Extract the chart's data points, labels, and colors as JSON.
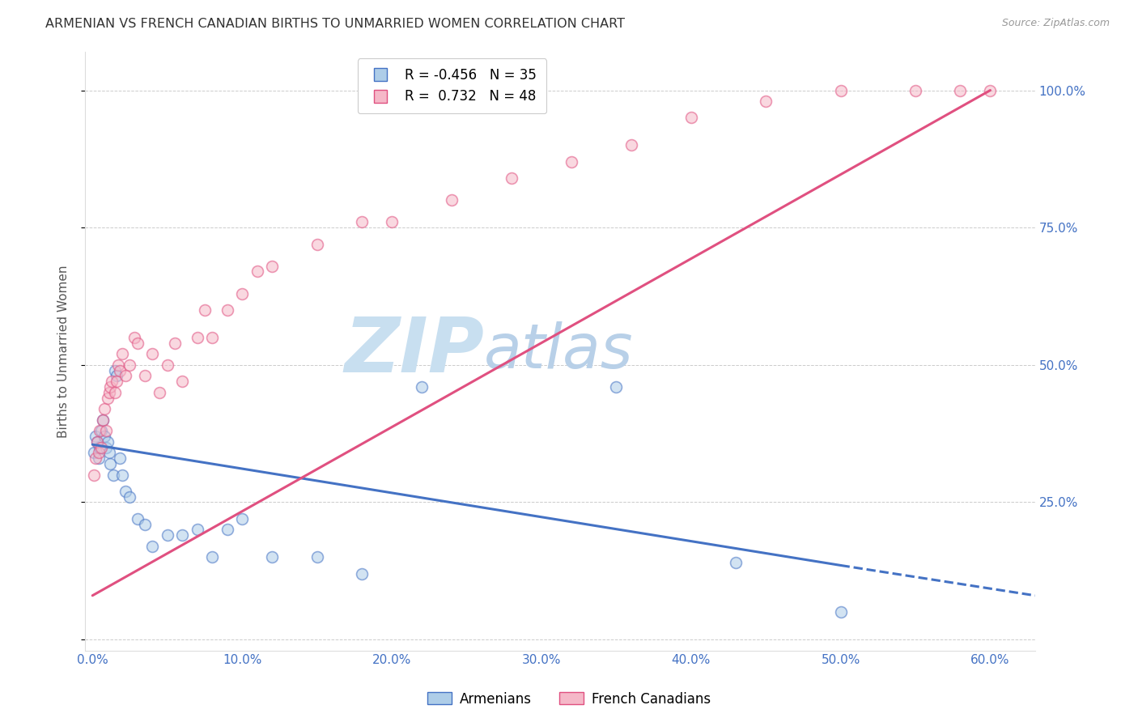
{
  "title": "ARMENIAN VS FRENCH CANADIAN BIRTHS TO UNMARRIED WOMEN CORRELATION CHART",
  "source_text": "Source: ZipAtlas.com",
  "ylabel": "Births to Unmarried Women",
  "xlabel_ticks": [
    0.0,
    10.0,
    20.0,
    30.0,
    40.0,
    50.0,
    60.0
  ],
  "ylabel_ticks_right": [
    25.0,
    50.0,
    75.0,
    100.0
  ],
  "ylabel_grid_ticks": [
    0.0,
    25.0,
    50.0,
    75.0,
    100.0
  ],
  "x_min": -0.5,
  "x_max": 63.0,
  "y_min": -2.0,
  "y_max": 107.0,
  "armenian_color": "#aecde8",
  "armenian_edge_color": "#4472c4",
  "armenian_line_color": "#4472c4",
  "french_color": "#f5b8c8",
  "french_edge_color": "#e05080",
  "french_line_color": "#e05080",
  "legend_R_armenian": "-0.456",
  "legend_N_armenian": "35",
  "legend_R_french": "0.732",
  "legend_N_french": "48",
  "legend_label_armenian": "Armenians",
  "legend_label_french": "French Canadians",
  "watermark_zip": "ZIP",
  "watermark_atlas": "atlas",
  "watermark_color_zip": "#c8dff0",
  "watermark_color_atlas": "#b8d0e8",
  "background_color": "#ffffff",
  "grid_color": "#cccccc",
  "axis_label_color": "#4472c4",
  "title_color": "#333333",
  "armenian_x": [
    0.1,
    0.2,
    0.3,
    0.4,
    0.5,
    0.6,
    0.7,
    0.8,
    0.9,
    1.0,
    1.1,
    1.2,
    1.4,
    1.5,
    1.6,
    1.8,
    2.0,
    2.2,
    2.5,
    3.0,
    3.5,
    4.0,
    5.0,
    6.0,
    7.0,
    8.0,
    9.0,
    10.0,
    12.0,
    15.0,
    18.0,
    22.0,
    35.0,
    43.0,
    50.0
  ],
  "armenian_y": [
    34.0,
    37.0,
    36.0,
    33.0,
    35.0,
    38.0,
    40.0,
    37.0,
    35.0,
    36.0,
    34.0,
    32.0,
    30.0,
    49.0,
    48.0,
    33.0,
    30.0,
    27.0,
    26.0,
    22.0,
    21.0,
    17.0,
    19.0,
    19.0,
    20.0,
    15.0,
    20.0,
    22.0,
    15.0,
    15.0,
    12.0,
    46.0,
    46.0,
    14.0,
    5.0
  ],
  "french_x": [
    0.1,
    0.2,
    0.3,
    0.4,
    0.5,
    0.6,
    0.7,
    0.8,
    0.9,
    1.0,
    1.1,
    1.2,
    1.3,
    1.5,
    1.6,
    1.7,
    1.8,
    2.0,
    2.2,
    2.5,
    2.8,
    3.0,
    3.5,
    4.0,
    4.5,
    5.0,
    5.5,
    6.0,
    7.0,
    7.5,
    8.0,
    9.0,
    10.0,
    11.0,
    12.0,
    15.0,
    18.0,
    20.0,
    24.0,
    28.0,
    32.0,
    36.0,
    40.0,
    45.0,
    50.0,
    55.0,
    58.0,
    60.0
  ],
  "french_y": [
    30.0,
    33.0,
    36.0,
    34.0,
    38.0,
    35.0,
    40.0,
    42.0,
    38.0,
    44.0,
    45.0,
    46.0,
    47.0,
    45.0,
    47.0,
    50.0,
    49.0,
    52.0,
    48.0,
    50.0,
    55.0,
    54.0,
    48.0,
    52.0,
    45.0,
    50.0,
    54.0,
    47.0,
    55.0,
    60.0,
    55.0,
    60.0,
    63.0,
    67.0,
    68.0,
    72.0,
    76.0,
    76.0,
    80.0,
    84.0,
    87.0,
    90.0,
    95.0,
    98.0,
    100.0,
    100.0,
    100.0,
    100.0
  ],
  "arm_line_x0": 0.0,
  "arm_line_x1": 50.0,
  "arm_line_y0": 35.5,
  "arm_line_y1": 13.5,
  "arm_dash_x0": 50.0,
  "arm_dash_x1": 63.0,
  "arm_dash_y0": 13.5,
  "arm_dash_y1": 8.0,
  "fr_line_x0": 0.0,
  "fr_line_x1": 60.0,
  "fr_line_y0": 8.0,
  "fr_line_y1": 100.0,
  "marker_size": 100,
  "marker_alpha": 0.55,
  "line_width": 2.2
}
